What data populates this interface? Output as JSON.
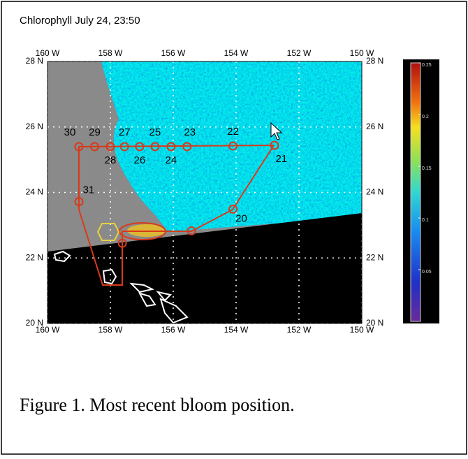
{
  "title": "Chlorophyll July 24, 23:50",
  "map": {
    "lon_ticks": [
      {
        "value": 160,
        "label": "160 W"
      },
      {
        "value": 158,
        "label": "158 W"
      },
      {
        "value": 156,
        "label": "156 W"
      },
      {
        "value": 154,
        "label": "154 W"
      },
      {
        "value": 152,
        "label": "152 W"
      },
      {
        "value": 150,
        "label": "150 W"
      }
    ],
    "lat_ticks": [
      {
        "value": 28,
        "label": "28 N"
      },
      {
        "value": 26,
        "label": "26 N"
      },
      {
        "value": 24,
        "label": "24 N"
      },
      {
        "value": 22,
        "label": "22 N"
      },
      {
        "value": 20,
        "label": "20 N"
      }
    ],
    "lon_lim": [
      160,
      150
    ],
    "lat_lim": [
      20,
      28
    ],
    "stations": [
      {
        "label": "30",
        "lon": 159.0,
        "lat": 25.4
      },
      {
        "label": "29",
        "lon": 158.5,
        "lat": 25.4
      },
      {
        "label": "28",
        "lon": 158.0,
        "lat": 25.4
      },
      {
        "label": "27",
        "lon": 157.55,
        "lat": 25.4
      },
      {
        "label": "26",
        "lon": 157.07,
        "lat": 25.4
      },
      {
        "label": "25",
        "lon": 156.58,
        "lat": 25.4
      },
      {
        "label": "24",
        "lon": 156.07,
        "lat": 25.4
      },
      {
        "label": "23",
        "lon": 155.56,
        "lat": 25.4
      },
      {
        "label": "22",
        "lon": 154.1,
        "lat": 25.42
      },
      {
        "label": "21",
        "lon": 152.78,
        "lat": 25.44
      },
      {
        "label": "20",
        "lon": 154.1,
        "lat": 23.49
      },
      {
        "label": null,
        "lon": 155.42,
        "lat": 22.83
      },
      {
        "label": "31",
        "lon": 159.0,
        "lat": 23.72
      },
      {
        "label": null,
        "lon": 157.62,
        "lat": 22.45
      }
    ]
  },
  "colorbar": {
    "lim": [
      0,
      0.25
    ],
    "ticks": [
      0.25,
      0.2,
      0.15,
      0.1,
      0.05
    ]
  },
  "caption": "Figure 1. Most recent bloom position."
}
